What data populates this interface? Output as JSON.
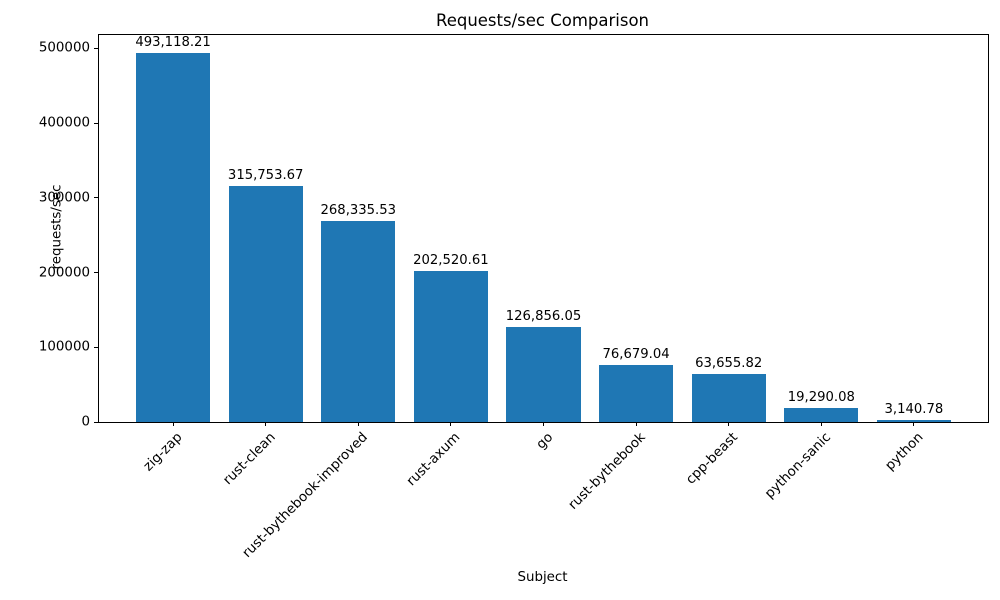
{
  "chart_data": {
    "type": "bar",
    "title": "Requests/sec Comparison",
    "xlabel": "Subject",
    "ylabel": "requests/sec",
    "categories": [
      "zig-zap",
      "rust-clean",
      "rust-bythebook-improved",
      "rust-axum",
      "go",
      "rust-bythebook",
      "cpp-beast",
      "python-sanic",
      "python"
    ],
    "values": [
      493118.21,
      315753.67,
      268335.53,
      202520.61,
      126856.05,
      76679.04,
      63655.82,
      19290.08,
      3140.78
    ],
    "value_labels": [
      "493,118.21",
      "315,753.67",
      "268,335.53",
      "202,520.61",
      "126,856.05",
      "76,679.04",
      "63,655.82",
      "19,290.08",
      "3,140.78"
    ],
    "yticks": [
      0,
      100000,
      200000,
      300000,
      400000,
      500000
    ],
    "ytick_labels": [
      "0",
      "100000",
      "200000",
      "300000",
      "400000",
      "500000"
    ],
    "ylim": [
      0,
      517774
    ],
    "grid": false,
    "legend_position": "none",
    "bar_color": "#1f77b4",
    "xtick_rotation_deg": 45
  }
}
